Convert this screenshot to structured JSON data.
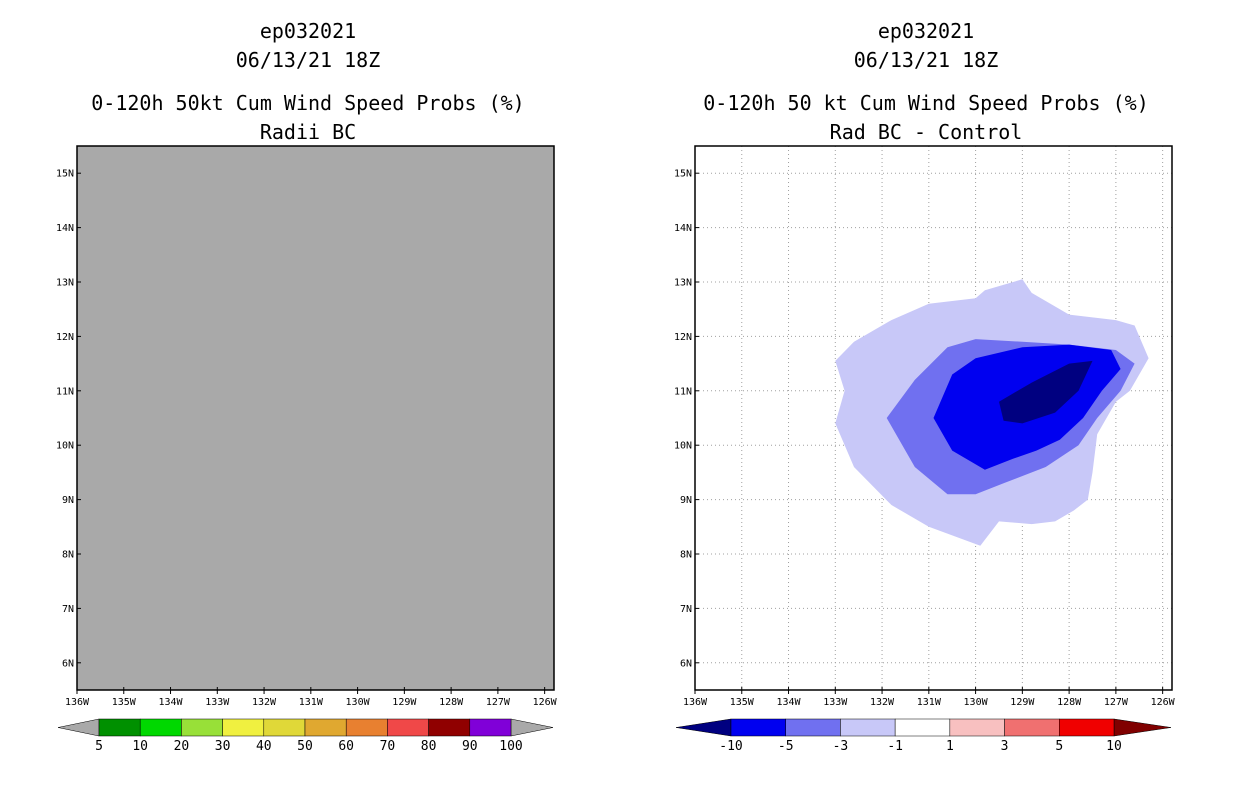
{
  "left_panel": {
    "storm_id": "ep032021",
    "datetime": "06/13/21 18Z",
    "title": "0-120h 50kt Cum Wind Speed Probs (%)",
    "subtitle": "Radii BC",
    "background_color": "#a9a9a9",
    "colorbar": {
      "labels": [
        "5",
        "10",
        "20",
        "30",
        "40",
        "50",
        "60",
        "70",
        "80",
        "90",
        "100"
      ],
      "colors": [
        "#009000",
        "#00d800",
        "#98e038",
        "#f0f040",
        "#e0d838",
        "#e0a830",
        "#e88030",
        "#f04848",
        "#900000",
        "#8000d8"
      ],
      "end_color": "#a9a9a9"
    }
  },
  "right_panel": {
    "storm_id": "ep032021",
    "datetime": "06/13/21 18Z",
    "title": "0-120h 50 kt Cum Wind Speed Probs (%)",
    "subtitle": "Rad BC - Control",
    "colorbar": {
      "labels": [
        "-10",
        "-5",
        "-3",
        "-1",
        "1",
        "3",
        "5",
        "10"
      ],
      "colors": [
        "#0000f0",
        "#7070f0",
        "#c8c8f8",
        "#ffffff",
        "#f8c0c0",
        "#f07070",
        "#f00000"
      ],
      "left_end_color": "#000080",
      "right_end_color": "#800000"
    }
  },
  "chart_data": [
    {
      "type": "heatmap",
      "title": "0-120h 50kt Cum Wind Speed Probs (%)",
      "subtitle": "Radii BC",
      "x_ticks": [
        "136W",
        "135W",
        "134W",
        "133W",
        "132W",
        "131W",
        "130W",
        "129W",
        "128W",
        "127W",
        "126W"
      ],
      "y_ticks": [
        "6N",
        "7N",
        "8N",
        "9N",
        "10N",
        "11N",
        "12N",
        "13N",
        "14N",
        "15N"
      ],
      "xlim": [
        -136,
        -125.8
      ],
      "ylim": [
        5.5,
        15.5
      ],
      "grid": false,
      "note": "field entirely masked (no data shown)"
    },
    {
      "type": "heatmap",
      "title": "0-120h 50 kt Cum Wind Speed Probs (%)",
      "subtitle": "Rad BC - Control",
      "x_ticks": [
        "136W",
        "135W",
        "134W",
        "133W",
        "132W",
        "131W",
        "130W",
        "129W",
        "128W",
        "127W",
        "126W"
      ],
      "y_ticks": [
        "6N",
        "7N",
        "8N",
        "9N",
        "10N",
        "11N",
        "12N",
        "13N",
        "14N",
        "15N"
      ],
      "xlim": [
        -136,
        -125.8
      ],
      "ylim": [
        5.5,
        15.5
      ],
      "grid": true,
      "contours": [
        {
          "level": "-1 to -3",
          "color": "#c8c8f8",
          "points": [
            [
              -133.0,
              11.55
            ],
            [
              -132.6,
              11.9
            ],
            [
              -131.8,
              12.3
            ],
            [
              -131.0,
              12.6
            ],
            [
              -130.0,
              12.7
            ],
            [
              -129.8,
              12.85
            ],
            [
              -129.0,
              13.05
            ],
            [
              -128.8,
              12.8
            ],
            [
              -128.0,
              12.4
            ],
            [
              -127.0,
              12.3
            ],
            [
              -126.6,
              12.2
            ],
            [
              -126.3,
              11.6
            ],
            [
              -126.7,
              11.0
            ],
            [
              -127.0,
              10.8
            ],
            [
              -127.4,
              10.2
            ],
            [
              -127.5,
              9.5
            ],
            [
              -127.6,
              9.0
            ],
            [
              -127.9,
              8.8
            ],
            [
              -128.3,
              8.6
            ],
            [
              -128.8,
              8.55
            ],
            [
              -129.5,
              8.6
            ],
            [
              -129.9,
              8.15
            ],
            [
              -131.0,
              8.5
            ],
            [
              -131.8,
              8.9
            ],
            [
              -132.6,
              9.6
            ],
            [
              -133.0,
              10.4
            ],
            [
              -132.8,
              11.0
            ],
            [
              -133.0,
              11.55
            ]
          ]
        },
        {
          "level": "-3 to -5",
          "color": "#7070f0",
          "points": [
            [
              -131.9,
              10.5
            ],
            [
              -131.3,
              11.2
            ],
            [
              -130.6,
              11.8
            ],
            [
              -130.0,
              11.95
            ],
            [
              -129.0,
              11.9
            ],
            [
              -128.0,
              11.85
            ],
            [
              -127.0,
              11.75
            ],
            [
              -126.6,
              11.5
            ],
            [
              -126.9,
              11.0
            ],
            [
              -127.4,
              10.5
            ],
            [
              -127.8,
              10.0
            ],
            [
              -128.5,
              9.6
            ],
            [
              -129.4,
              9.3
            ],
            [
              -130.0,
              9.1
            ],
            [
              -130.6,
              9.1
            ],
            [
              -131.3,
              9.6
            ],
            [
              -131.9,
              10.5
            ]
          ]
        },
        {
          "level": "-5 to -10",
          "color": "#0000f0",
          "points": [
            [
              -130.9,
              10.5
            ],
            [
              -130.5,
              11.3
            ],
            [
              -130.0,
              11.6
            ],
            [
              -129.0,
              11.8
            ],
            [
              -128.0,
              11.85
            ],
            [
              -127.1,
              11.75
            ],
            [
              -126.9,
              11.4
            ],
            [
              -127.3,
              11.0
            ],
            [
              -127.7,
              10.5
            ],
            [
              -128.2,
              10.1
            ],
            [
              -128.7,
              9.9
            ],
            [
              -129.2,
              9.75
            ],
            [
              -129.8,
              9.55
            ],
            [
              -130.5,
              9.9
            ],
            [
              -130.9,
              10.5
            ]
          ]
        },
        {
          "level": "< -10",
          "color": "#000080",
          "points": [
            [
              -129.5,
              10.8
            ],
            [
              -128.8,
              11.15
            ],
            [
              -128.0,
              11.5
            ],
            [
              -127.5,
              11.55
            ],
            [
              -127.8,
              11.0
            ],
            [
              -128.3,
              10.6
            ],
            [
              -129.0,
              10.4
            ],
            [
              -129.4,
              10.45
            ],
            [
              -129.5,
              10.8
            ]
          ]
        }
      ]
    }
  ]
}
